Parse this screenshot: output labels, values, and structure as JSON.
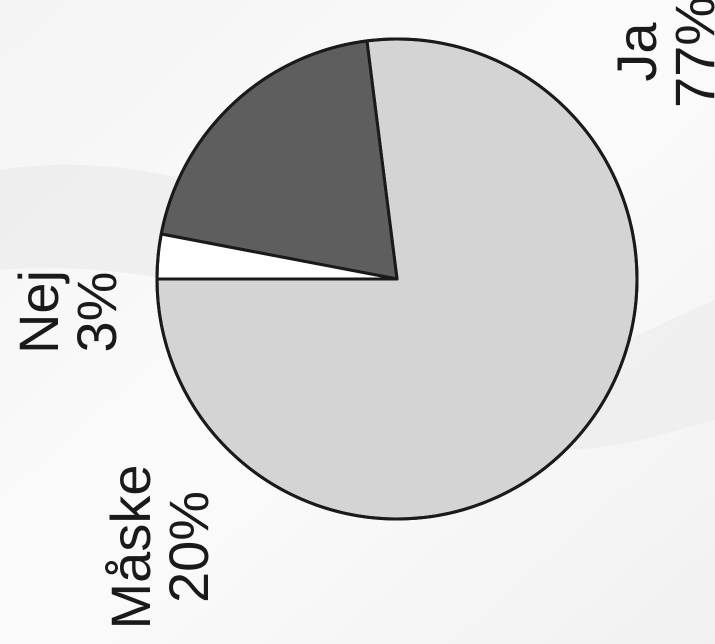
{
  "chart_data": {
    "type": "pie",
    "categories": [
      "Ja",
      "Måske",
      "Nej"
    ],
    "values": [
      77,
      20,
      3
    ],
    "value_labels": [
      "77%",
      "20%",
      "3%"
    ],
    "colors": [
      "#d4d4d4",
      "#5e5e5e",
      "#ffffff"
    ],
    "title": "",
    "legend": "none",
    "orientation": "rotated 90° counter-clockwise"
  }
}
